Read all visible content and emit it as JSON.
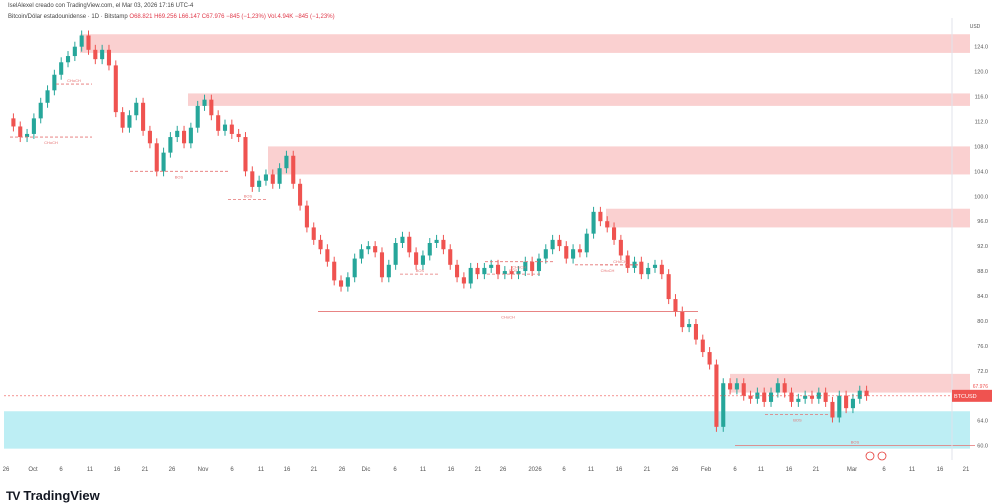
{
  "header": {
    "author_line": "IselAlexel creado con TradingView.com, el Mar 03, 2026 17:16 UTC-4",
    "symbol": "Bitcoin/Dólar estadounidense · 1D · Bitstamp",
    "ohlc": "O68.821  H69.256  L66.147  C67.976  −845 (−1,23%)  Vol.4.94K  −845 (−1,23%)"
  },
  "branding": {
    "logo": "TradingView"
  },
  "colors": {
    "up": "#26a69a",
    "down": "#ef5350",
    "supply_zone": "#f9c8c8",
    "demand_zone": "#b2ebf2",
    "structure": "#e57373"
  },
  "chart_data": {
    "type": "candlestick",
    "currency_label": "USD",
    "ylim": [
      58,
      127
    ],
    "y_ticks": [
      60,
      64,
      68,
      72,
      76,
      80,
      84,
      88,
      92,
      96,
      100,
      104,
      108,
      112,
      116,
      120,
      124
    ],
    "y_tick_labels": [
      "60.0",
      "64.0",
      "",
      "72.0",
      "76.0",
      "80.0",
      "84.0",
      "88.0",
      "92.0",
      "96.0",
      "100.0",
      "104.0",
      "108.0",
      "112.0",
      "116.0",
      "120.0",
      "124.0"
    ],
    "x_tick_labels": [
      "26",
      "Oct",
      "6",
      "11",
      "16",
      "21",
      "26",
      "Nov",
      "6",
      "11",
      "16",
      "21",
      "26",
      "Dic",
      "6",
      "11",
      "16",
      "21",
      "26",
      "2026",
      "6",
      "11",
      "16",
      "21",
      "26",
      "Feb",
      "6",
      "11",
      "16",
      "21",
      "Mar",
      "6",
      "11",
      "16",
      "21"
    ],
    "price_label": "BTCUSD",
    "last_price": 67.976,
    "candles": [
      {
        "o": 112.5,
        "c": 111.2
      },
      {
        "o": 111.2,
        "c": 109.5
      },
      {
        "o": 109.5,
        "c": 110.0
      },
      {
        "o": 110.0,
        "c": 112.5
      },
      {
        "o": 112.5,
        "c": 115.0
      },
      {
        "o": 115.0,
        "c": 117.0
      },
      {
        "o": 117.0,
        "c": 119.5
      },
      {
        "o": 119.5,
        "c": 121.5
      },
      {
        "o": 121.5,
        "c": 122.5
      },
      {
        "o": 122.5,
        "c": 124.0
      },
      {
        "o": 124.0,
        "c": 125.8
      },
      {
        "o": 125.8,
        "c": 123.5
      },
      {
        "o": 123.5,
        "c": 122.0
      },
      {
        "o": 122.0,
        "c": 123.5
      },
      {
        "o": 123.5,
        "c": 121.0
      },
      {
        "o": 121.0,
        "c": 113.5
      },
      {
        "o": 113.5,
        "c": 111.0
      },
      {
        "o": 111.0,
        "c": 113.0
      },
      {
        "o": 113.0,
        "c": 115.0
      },
      {
        "o": 115.0,
        "c": 110.5
      },
      {
        "o": 110.5,
        "c": 108.5
      },
      {
        "o": 108.5,
        "c": 104.0
      },
      {
        "o": 104.0,
        "c": 107.0
      },
      {
        "o": 107.0,
        "c": 109.5
      },
      {
        "o": 109.5,
        "c": 110.5
      },
      {
        "o": 110.5,
        "c": 108.5
      },
      {
        "o": 108.5,
        "c": 111.0
      },
      {
        "o": 111.0,
        "c": 114.5
      },
      {
        "o": 114.5,
        "c": 115.5
      },
      {
        "o": 115.5,
        "c": 113.0
      },
      {
        "o": 113.0,
        "c": 110.5
      },
      {
        "o": 110.5,
        "c": 111.5
      },
      {
        "o": 111.5,
        "c": 110.0
      },
      {
        "o": 110.0,
        "c": 109.5
      },
      {
        "o": 109.5,
        "c": 104.0
      },
      {
        "o": 104.0,
        "c": 101.5
      },
      {
        "o": 101.5,
        "c": 102.5
      },
      {
        "o": 102.5,
        "c": 103.5
      },
      {
        "o": 103.5,
        "c": 102.0
      },
      {
        "o": 102.0,
        "c": 104.5
      },
      {
        "o": 104.5,
        "c": 106.5
      },
      {
        "o": 106.5,
        "c": 102.0
      },
      {
        "o": 102.0,
        "c": 98.5
      },
      {
        "o": 98.5,
        "c": 95.0
      },
      {
        "o": 95.0,
        "c": 93.0
      },
      {
        "o": 93.0,
        "c": 91.5
      },
      {
        "o": 91.5,
        "c": 89.5
      },
      {
        "o": 89.5,
        "c": 86.5
      },
      {
        "o": 86.5,
        "c": 85.5
      },
      {
        "o": 85.5,
        "c": 87.0
      },
      {
        "o": 87.0,
        "c": 90.0
      },
      {
        "o": 90.0,
        "c": 91.5
      },
      {
        "o": 91.5,
        "c": 92.0
      },
      {
        "o": 92.0,
        "c": 91.0
      },
      {
        "o": 91.0,
        "c": 87.0
      },
      {
        "o": 87.0,
        "c": 89.0
      },
      {
        "o": 89.0,
        "c": 92.5
      },
      {
        "o": 92.5,
        "c": 93.5
      },
      {
        "o": 93.5,
        "c": 91.0
      },
      {
        "o": 91.0,
        "c": 89.0
      },
      {
        "o": 89.0,
        "c": 90.5
      },
      {
        "o": 90.5,
        "c": 92.5
      },
      {
        "o": 92.5,
        "c": 93.0
      },
      {
        "o": 93.0,
        "c": 91.5
      },
      {
        "o": 91.5,
        "c": 89.0
      },
      {
        "o": 89.0,
        "c": 87.0
      },
      {
        "o": 87.0,
        "c": 86.0
      },
      {
        "o": 86.0,
        "c": 88.5
      },
      {
        "o": 88.5,
        "c": 87.5
      },
      {
        "o": 87.5,
        "c": 88.5
      },
      {
        "o": 88.5,
        "c": 89.0
      },
      {
        "o": 89.0,
        "c": 87.5
      },
      {
        "o": 87.5,
        "c": 88.0
      },
      {
        "o": 88.0,
        "c": 87.5
      },
      {
        "o": 87.5,
        "c": 88.0
      },
      {
        "o": 88.0,
        "c": 89.5
      },
      {
        "o": 89.5,
        "c": 88.0
      },
      {
        "o": 88.0,
        "c": 90.0
      },
      {
        "o": 90.0,
        "c": 91.5
      },
      {
        "o": 91.5,
        "c": 93.0
      },
      {
        "o": 93.0,
        "c": 92.0
      },
      {
        "o": 92.0,
        "c": 90.0
      },
      {
        "o": 90.0,
        "c": 91.5
      },
      {
        "o": 91.5,
        "c": 91.0
      },
      {
        "o": 91.0,
        "c": 94.0
      },
      {
        "o": 94.0,
        "c": 97.5
      },
      {
        "o": 97.5,
        "c": 96.0
      },
      {
        "o": 96.0,
        "c": 95.0
      },
      {
        "o": 95.0,
        "c": 93.0
      },
      {
        "o": 93.0,
        "c": 90.5
      },
      {
        "o": 90.5,
        "c": 88.5
      },
      {
        "o": 88.5,
        "c": 89.5
      },
      {
        "o": 89.5,
        "c": 87.5
      },
      {
        "o": 87.5,
        "c": 88.5
      },
      {
        "o": 88.5,
        "c": 89.0
      },
      {
        "o": 89.0,
        "c": 87.5
      },
      {
        "o": 87.5,
        "c": 83.5
      },
      {
        "o": 83.5,
        "c": 81.5
      },
      {
        "o": 81.5,
        "c": 79.0
      },
      {
        "o": 79.0,
        "c": 79.5
      },
      {
        "o": 79.5,
        "c": 77.0
      },
      {
        "o": 77.0,
        "c": 75.0
      },
      {
        "o": 75.0,
        "c": 73.0
      },
      {
        "o": 73.0,
        "c": 63.0
      },
      {
        "o": 63.0,
        "c": 70.0
      },
      {
        "o": 70.0,
        "c": 69.0
      },
      {
        "o": 69.0,
        "c": 70.0
      },
      {
        "o": 70.0,
        "c": 68.0
      },
      {
        "o": 68.0,
        "c": 67.5
      },
      {
        "o": 67.5,
        "c": 68.5
      },
      {
        "o": 68.5,
        "c": 67.0
      },
      {
        "o": 67.0,
        "c": 68.5
      },
      {
        "o": 68.5,
        "c": 70.0
      },
      {
        "o": 70.0,
        "c": 68.5
      },
      {
        "o": 68.5,
        "c": 67.0
      },
      {
        "o": 67.0,
        "c": 67.5
      },
      {
        "o": 67.5,
        "c": 68.0
      },
      {
        "o": 68.0,
        "c": 67.5
      },
      {
        "o": 67.5,
        "c": 68.5
      },
      {
        "o": 68.5,
        "c": 67.0
      },
      {
        "o": 67.0,
        "c": 64.5
      },
      {
        "o": 64.5,
        "c": 68.0
      },
      {
        "o": 68.0,
        "c": 66.0
      },
      {
        "o": 66.0,
        "c": 67.5
      },
      {
        "o": 67.5,
        "c": 68.8
      },
      {
        "o": 68.8,
        "c": 67.98
      }
    ],
    "zones": [
      {
        "type": "supply",
        "from": 123.0,
        "to": 126.0
      },
      {
        "type": "supply",
        "from": 114.5,
        "to": 116.5
      },
      {
        "type": "supply",
        "from": 103.5,
        "to": 108.0
      },
      {
        "type": "supply",
        "from": 95.0,
        "to": 98.0
      },
      {
        "type": "supply",
        "from": 68.5,
        "to": 71.5
      },
      {
        "type": "demand",
        "from": 59.5,
        "to": 65.5
      }
    ],
    "structure_labels": [
      "CHoCH",
      "CHoCH",
      "BOS",
      "BOS",
      "CHoCH",
      "BOS",
      "CHoCH",
      "BOS",
      "CHoCH",
      "CHoCH",
      "BOS",
      "BOS"
    ]
  }
}
